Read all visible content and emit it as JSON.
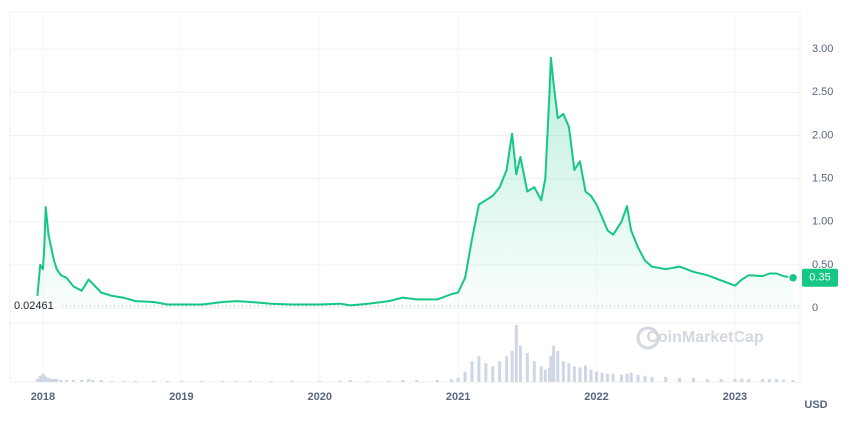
{
  "chart_data": {
    "type": "line",
    "x": [
      2017.96,
      2017.98,
      2018.0,
      2018.01,
      2018.02,
      2018.04,
      2018.06,
      2018.08,
      2018.1,
      2018.13,
      2018.17,
      2018.22,
      2018.28,
      2018.33,
      2018.36,
      2018.42,
      2018.5,
      2018.58,
      2018.67,
      2018.8,
      2018.9,
      2019.0,
      2019.15,
      2019.3,
      2019.4,
      2019.5,
      2019.65,
      2019.8,
      2020.0,
      2020.15,
      2020.22,
      2020.35,
      2020.5,
      2020.6,
      2020.7,
      2020.85,
      2020.95,
      2021.0,
      2021.05,
      2021.1,
      2021.15,
      2021.2,
      2021.25,
      2021.3,
      2021.35,
      2021.39,
      2021.42,
      2021.45,
      2021.5,
      2021.55,
      2021.6,
      2021.63,
      2021.66,
      2021.67,
      2021.69,
      2021.72,
      2021.76,
      2021.8,
      2021.84,
      2021.88,
      2021.92,
      2021.96,
      2022.0,
      2022.04,
      2022.08,
      2022.12,
      2022.18,
      2022.22,
      2022.25,
      2022.3,
      2022.35,
      2022.4,
      2022.5,
      2022.6,
      2022.7,
      2022.8,
      2022.9,
      2023.0,
      2023.05,
      2023.1,
      2023.2,
      2023.25,
      2023.3,
      2023.35,
      2023.42
    ],
    "series": [
      {
        "color": "#16c784",
        "values": [
          0.14,
          0.5,
          0.45,
          0.7,
          1.17,
          0.85,
          0.7,
          0.55,
          0.45,
          0.38,
          0.35,
          0.25,
          0.2,
          0.33,
          0.28,
          0.18,
          0.14,
          0.12,
          0.08,
          0.07,
          0.04,
          0.04,
          0.04,
          0.07,
          0.08,
          0.07,
          0.05,
          0.04,
          0.04,
          0.05,
          0.03,
          0.05,
          0.08,
          0.12,
          0.1,
          0.1,
          0.16,
          0.18,
          0.35,
          0.8,
          1.2,
          1.25,
          1.3,
          1.4,
          1.6,
          2.02,
          1.55,
          1.75,
          1.35,
          1.4,
          1.25,
          1.5,
          2.5,
          2.9,
          2.6,
          2.2,
          2.25,
          2.1,
          1.6,
          1.7,
          1.35,
          1.3,
          1.2,
          1.05,
          0.9,
          0.85,
          1.0,
          1.18,
          0.9,
          0.7,
          0.55,
          0.48,
          0.45,
          0.48,
          0.42,
          0.38,
          0.32,
          0.26,
          0.33,
          0.38,
          0.37,
          0.4,
          0.4,
          0.37,
          0.35
        ]
      }
    ],
    "volume": {
      "color": "#cfd6e4",
      "values": [
        3,
        6,
        8,
        6,
        5,
        4,
        3,
        3,
        3,
        2,
        2,
        2,
        2,
        3,
        2,
        2,
        1,
        1,
        1,
        1,
        1,
        1,
        1,
        1,
        1,
        1,
        1,
        1,
        1,
        1,
        2,
        1,
        1,
        2,
        2,
        2,
        3,
        4,
        10,
        20,
        25,
        18,
        15,
        20,
        25,
        30,
        55,
        35,
        28,
        20,
        15,
        12,
        14,
        25,
        35,
        30,
        20,
        18,
        15,
        14,
        16,
        12,
        10,
        9,
        8,
        8,
        7,
        8,
        9,
        7,
        6,
        5,
        5,
        4,
        4,
        3,
        3,
        3,
        3,
        3,
        3,
        3,
        3,
        2,
        2
      ]
    },
    "xlim": [
      2017.762,
      2023.47
    ],
    "xticks": [
      2018,
      2019,
      2020,
      2021,
      2022,
      2023
    ],
    "ylim": [
      0,
      3.35
    ],
    "yticks": [
      0,
      {
        "value": 0.5,
        "label": "0.50"
      },
      {
        "value": 1,
        "label": "1.00"
      },
      {
        "value": 1.5,
        "label": "1.50"
      },
      {
        "value": 2,
        "label": "2.00"
      },
      {
        "value": 2.5,
        "label": "2.50"
      },
      {
        "value": 3,
        "label": "3.00"
      }
    ],
    "grid": true,
    "reference_value": 0.02461,
    "y_unit": "USD",
    "watermark": "CoinMarketCap"
  }
}
